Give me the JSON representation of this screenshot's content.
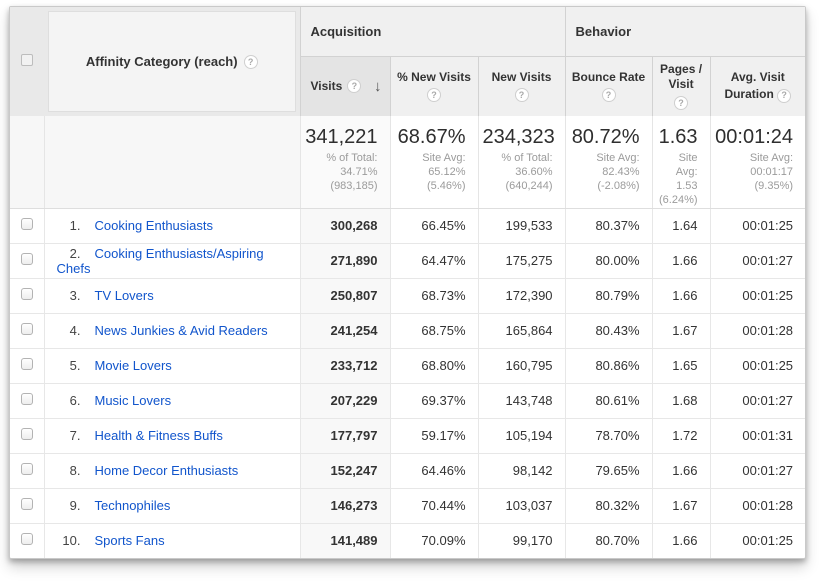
{
  "colors": {
    "link_blue": "#1155cc",
    "header_text": "#333333",
    "summary_sub_gray": "#9b9b9b",
    "sorted_header_bg": "#e4e4e4"
  },
  "table": {
    "dimension_header": {
      "label": "Affinity Category (reach)",
      "help_icon": "?"
    },
    "groups": {
      "acquisition": "Acquisition",
      "behavior": "Behavior"
    },
    "columns": {
      "visits": {
        "label": "Visits",
        "sorted": "descending",
        "sort_glyph": "↓"
      },
      "pct_new_visits": {
        "label": "% New Visits"
      },
      "new_visits": {
        "label": "New Visits"
      },
      "bounce_rate": {
        "label": "Bounce Rate"
      },
      "pages_visit": {
        "label": "Pages / Visit"
      },
      "avg_duration": {
        "label": "Avg. Visit Duration"
      }
    },
    "summary": {
      "visits": {
        "value": "341,221",
        "sub": "% of Total:\n34.71%\n(983,185)"
      },
      "pct_new_visits": {
        "value": "68.67%",
        "sub": "Site Avg:\n65.12%\n(5.46%)"
      },
      "new_visits": {
        "value": "234,323",
        "sub": "% of Total:\n36.60%\n(640,244)"
      },
      "bounce_rate": {
        "value": "80.72%",
        "sub": "Site Avg:\n82.43%\n(-2.08%)"
      },
      "pages_visit": {
        "value": "1.63",
        "sub": "Site\nAvg:\n1.53\n(6.24%)"
      },
      "avg_duration": {
        "value": "00:01:24",
        "sub": "Site Avg:\n00:01:17\n(9.35%)"
      }
    },
    "rows": [
      {
        "num": "1.",
        "category": "Cooking Enthusiasts",
        "visits": "300,268",
        "pct_new": "66.45%",
        "new_visits": "199,533",
        "bounce": "80.37%",
        "pages": "1.64",
        "duration": "00:01:25"
      },
      {
        "num": "2.",
        "category": "Cooking Enthusiasts/Aspiring Chefs",
        "visits": "271,890",
        "pct_new": "64.47%",
        "new_visits": "175,275",
        "bounce": "80.00%",
        "pages": "1.66",
        "duration": "00:01:27"
      },
      {
        "num": "3.",
        "category": "TV Lovers",
        "visits": "250,807",
        "pct_new": "68.73%",
        "new_visits": "172,390",
        "bounce": "80.79%",
        "pages": "1.66",
        "duration": "00:01:25"
      },
      {
        "num": "4.",
        "category": "News Junkies & Avid Readers",
        "visits": "241,254",
        "pct_new": "68.75%",
        "new_visits": "165,864",
        "bounce": "80.43%",
        "pages": "1.67",
        "duration": "00:01:28"
      },
      {
        "num": "5.",
        "category": "Movie Lovers",
        "visits": "233,712",
        "pct_new": "68.80%",
        "new_visits": "160,795",
        "bounce": "80.86%",
        "pages": "1.65",
        "duration": "00:01:25"
      },
      {
        "num": "6.",
        "category": "Music Lovers",
        "visits": "207,229",
        "pct_new": "69.37%",
        "new_visits": "143,748",
        "bounce": "80.61%",
        "pages": "1.68",
        "duration": "00:01:27"
      },
      {
        "num": "7.",
        "category": "Health & Fitness Buffs",
        "visits": "177,797",
        "pct_new": "59.17%",
        "new_visits": "105,194",
        "bounce": "78.70%",
        "pages": "1.72",
        "duration": "00:01:31"
      },
      {
        "num": "8.",
        "category": "Home Decor Enthusiasts",
        "visits": "152,247",
        "pct_new": "64.46%",
        "new_visits": "98,142",
        "bounce": "79.65%",
        "pages": "1.66",
        "duration": "00:01:27"
      },
      {
        "num": "9.",
        "category": "Technophiles",
        "visits": "146,273",
        "pct_new": "70.44%",
        "new_visits": "103,037",
        "bounce": "80.32%",
        "pages": "1.67",
        "duration": "00:01:28"
      },
      {
        "num": "10.",
        "category": "Sports Fans",
        "visits": "141,489",
        "pct_new": "70.09%",
        "new_visits": "99,170",
        "bounce": "80.70%",
        "pages": "1.66",
        "duration": "00:01:25"
      }
    ]
  }
}
